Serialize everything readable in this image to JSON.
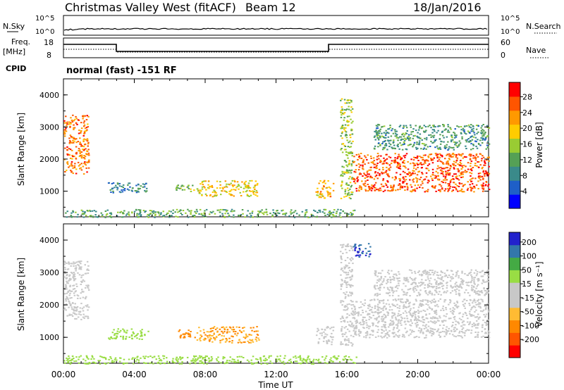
{
  "header": {
    "station": "Christmas Valley West (fitACF)",
    "beam": "Beam 12",
    "date": "18/Jan/2016"
  },
  "noise_panel": {
    "left_label": "N.Sky",
    "left_ticks": [
      "10^5",
      "10^0"
    ],
    "right_label": "N.Search",
    "right_ticks": [
      "10^5",
      "10^0"
    ]
  },
  "freq_panel": {
    "left_label_1": "Freq.",
    "left_label_2": "[MHz]",
    "left_ticks": [
      "18",
      "8"
    ],
    "right_label": "Nave",
    "right_ticks": [
      "60",
      "0"
    ]
  },
  "cpid": {
    "label": "CPID",
    "text": "normal (fast) -151 RF"
  },
  "colors": {
    "power_scale": [
      "#0000ff",
      "#1e5fc8",
      "#3a8a8a",
      "#55a055",
      "#99cc33",
      "#ffcc00",
      "#ff9900",
      "#ff5500",
      "#ff0000"
    ],
    "velocity_scale": [
      "#ff0000",
      "#ff5500",
      "#ff8800",
      "#ffbb33",
      "#c8c8c8",
      "#c8c8c8",
      "#99dd44",
      "#44aa44",
      "#3377aa",
      "#2222cc"
    ]
  },
  "chart_data": [
    {
      "type": "heatmap",
      "name": "power",
      "ylabel": "Slant Range [km]",
      "y_ticks": [
        "1000",
        "2000",
        "3000",
        "4000"
      ],
      "ylim": [
        200,
        4500
      ],
      "x_ticks": [
        "00:00",
        "04:00",
        "08:00",
        "12:00",
        "16:00",
        "20:00",
        "00:00"
      ],
      "xlim_hours": [
        0,
        24
      ],
      "colorbar_label": "Power [dB]",
      "colorbar_ticks": [
        "4",
        "8",
        "12",
        "16",
        "20",
        "24",
        "28"
      ],
      "regions": [
        {
          "t0": 0.0,
          "t1": 1.4,
          "r0": 1550,
          "r1": 3400,
          "level": 26
        },
        {
          "t0": 2.5,
          "t1": 4.8,
          "r0": 950,
          "r1": 1280,
          "level": 8
        },
        {
          "t0": 6.3,
          "t1": 7.4,
          "r0": 1000,
          "r1": 1250,
          "level": 14
        },
        {
          "t0": 7.5,
          "t1": 11.0,
          "r0": 850,
          "r1": 1350,
          "level": 20
        },
        {
          "t0": 14.2,
          "t1": 15.2,
          "r0": 800,
          "r1": 1350,
          "level": 22
        },
        {
          "t0": 15.6,
          "t1": 16.3,
          "r0": 750,
          "r1": 3900,
          "level": 16
        },
        {
          "t0": 16.3,
          "t1": 24.0,
          "r0": 1000,
          "r1": 2200,
          "level": 28
        },
        {
          "t0": 17.5,
          "t1": 24.0,
          "r0": 2300,
          "r1": 3100,
          "level": 10
        },
        {
          "t0": 0.0,
          "t1": 16.5,
          "r0": 200,
          "r1": 450,
          "level": 12
        }
      ]
    },
    {
      "type": "heatmap",
      "name": "velocity",
      "ylabel": "Slant Range [km]",
      "y_ticks": [
        "1000",
        "2000",
        "3000",
        "4000"
      ],
      "ylim": [
        200,
        4500
      ],
      "x_ticks": [
        "00:00",
        "04:00",
        "08:00",
        "12:00",
        "16:00",
        "20:00",
        "00:00"
      ],
      "xlim_hours": [
        0,
        24
      ],
      "xlabel": "Time UT",
      "colorbar_label": "Velocity [m s⁻¹]",
      "colorbar_ticks": [
        "200",
        "100",
        "50",
        "15",
        "-15",
        "-50",
        "-100",
        "-200"
      ],
      "regions": [
        {
          "t0": 0.0,
          "t1": 1.4,
          "r0": 1550,
          "r1": 3400,
          "level": 0
        },
        {
          "t0": 2.5,
          "t1": 4.8,
          "r0": 950,
          "r1": 1280,
          "level": 40
        },
        {
          "t0": 6.3,
          "t1": 7.4,
          "r0": 1000,
          "r1": 1250,
          "level": -60
        },
        {
          "t0": 7.5,
          "t1": 11.0,
          "r0": 850,
          "r1": 1350,
          "level": -50
        },
        {
          "t0": 14.2,
          "t1": 15.2,
          "r0": 800,
          "r1": 1350,
          "level": 0
        },
        {
          "t0": 15.6,
          "t1": 16.3,
          "r0": 750,
          "r1": 3900,
          "level": 0
        },
        {
          "t0": 16.3,
          "t1": 17.3,
          "r0": 3500,
          "r1": 3950,
          "level": 200
        },
        {
          "t0": 16.3,
          "t1": 24.0,
          "r0": 1000,
          "r1": 2200,
          "level": 0
        },
        {
          "t0": 17.5,
          "t1": 24.0,
          "r0": 2300,
          "r1": 3100,
          "level": 0
        },
        {
          "t0": 0.0,
          "t1": 16.5,
          "r0": 200,
          "r1": 450,
          "level": 40
        }
      ]
    }
  ]
}
